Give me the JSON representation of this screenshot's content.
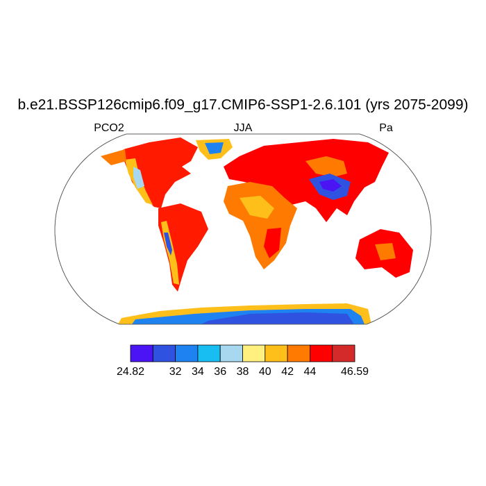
{
  "title": "b.e21.BSSP126cmip6.f09_g17.CMIP6-SSP1-2.6.101 (yrs 2075-2099)",
  "left_label": "PCO2",
  "center_label": "JJA",
  "right_label": "Pa",
  "colorbar": {
    "colors": [
      "#4a14f5",
      "#2f52e0",
      "#1e82f0",
      "#18bef2",
      "#a8d8f0",
      "#fff080",
      "#ffbf1a",
      "#ff7a00",
      "#ff0000",
      "#d42a2a"
    ],
    "labels": [
      24.82,
      null,
      32,
      34,
      36,
      38,
      40,
      42,
      44,
      null,
      46.59
    ]
  }
}
